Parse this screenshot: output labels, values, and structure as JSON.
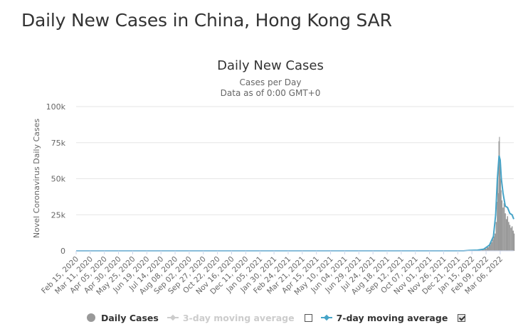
{
  "page": {
    "heading": "Daily New Cases in China, Hong Kong SAR"
  },
  "colors": {
    "bars": "#999999",
    "ma7": "#46a4c8",
    "ma3_off": "#cccccc",
    "grid": "#e6e6e6"
  },
  "chart_data": {
    "type": "bar",
    "title": "Daily New Cases",
    "subtitle": "Cases per Day",
    "subtitle2": "Data as of 0:00 GMT+0",
    "ylabel": "Novel Coronavirus Daily Cases",
    "xlabel": "",
    "ylim": [
      0,
      100000
    ],
    "yticks": [
      0,
      25000,
      50000,
      75000,
      100000
    ],
    "ytick_labels": [
      "0",
      "25k",
      "50k",
      "75k",
      "100k"
    ],
    "x_start": "2020-02-15",
    "x_end": "2022-03-30",
    "xtick_labels": [
      "Feb 15, 2020",
      "Mar 11, 2020",
      "Apr 05, 2020",
      "Apr 30, 2020",
      "May 25, 2020",
      "Jun 19, 2020",
      "Jul 14, 2020",
      "Aug 08, 2020",
      "Sep 02, 2020",
      "Sep 27, 2020",
      "Oct 22, 2020",
      "Nov 16, 2020",
      "Dec 11, 2020",
      "Jan 05, 2021",
      "Jan 30, 2021",
      "Feb 24, 2021",
      "Mar 21, 2021",
      "Apr 15, 2021",
      "May 10, 2021",
      "Jun 04, 2021",
      "Jun 29, 2021",
      "Jul 24, 2021",
      "Aug 18, 2021",
      "Sep 12, 2021",
      "Oct 07, 2021",
      "Nov 01, 2021",
      "Nov 26, 2021",
      "Dec 21, 2021",
      "Jan 15, 2022",
      "Feb 09, 2022",
      "Mar 06, 2022"
    ],
    "daily_cases": [
      {
        "date": "2022-01-15",
        "value": 200
      },
      {
        "date": "2022-01-25",
        "value": 400
      },
      {
        "date": "2022-02-01",
        "value": 800
      },
      {
        "date": "2022-02-06",
        "value": 1500
      },
      {
        "date": "2022-02-10",
        "value": 2500
      },
      {
        "date": "2022-02-14",
        "value": 4000
      },
      {
        "date": "2022-02-17",
        "value": 6000
      },
      {
        "date": "2022-02-20",
        "value": 8000
      },
      {
        "date": "2022-02-22",
        "value": 10000
      },
      {
        "date": "2022-02-24",
        "value": 12000
      },
      {
        "date": "2022-02-26",
        "value": 20000
      },
      {
        "date": "2022-02-28",
        "value": 34000
      },
      {
        "date": "2022-03-01",
        "value": 55000
      },
      {
        "date": "2022-03-02",
        "value": 40000
      },
      {
        "date": "2022-03-03",
        "value": 76000
      },
      {
        "date": "2022-03-04",
        "value": 79000
      },
      {
        "date": "2022-03-05",
        "value": 60000
      },
      {
        "date": "2022-03-06",
        "value": 50000
      },
      {
        "date": "2022-03-07",
        "value": 42000
      },
      {
        "date": "2022-03-08",
        "value": 35000
      },
      {
        "date": "2022-03-10",
        "value": 30000
      },
      {
        "date": "2022-03-12",
        "value": 33000
      },
      {
        "date": "2022-03-14",
        "value": 26000
      },
      {
        "date": "2022-03-16",
        "value": 22000
      },
      {
        "date": "2022-03-18",
        "value": 24000
      },
      {
        "date": "2022-03-20",
        "value": 20000
      },
      {
        "date": "2022-03-22",
        "value": 18000
      },
      {
        "date": "2022-03-24",
        "value": 16000
      },
      {
        "date": "2022-03-26",
        "value": 17000
      },
      {
        "date": "2022-03-28",
        "value": 14000
      },
      {
        "date": "2022-03-30",
        "value": 12000
      }
    ],
    "ma7": [
      {
        "date": "2020-02-15",
        "value": 0
      },
      {
        "date": "2021-12-31",
        "value": 0
      },
      {
        "date": "2022-01-10",
        "value": 300
      },
      {
        "date": "2022-01-25",
        "value": 500
      },
      {
        "date": "2022-02-05",
        "value": 1200
      },
      {
        "date": "2022-02-15",
        "value": 4000
      },
      {
        "date": "2022-02-22",
        "value": 10000
      },
      {
        "date": "2022-02-26",
        "value": 25000
      },
      {
        "date": "2022-03-01",
        "value": 50000
      },
      {
        "date": "2022-03-04",
        "value": 66000
      },
      {
        "date": "2022-03-06",
        "value": 63000
      },
      {
        "date": "2022-03-08",
        "value": 50000
      },
      {
        "date": "2022-03-11",
        "value": 40000
      },
      {
        "date": "2022-03-15",
        "value": 31000
      },
      {
        "date": "2022-03-19",
        "value": 30000
      },
      {
        "date": "2022-03-23",
        "value": 26000
      },
      {
        "date": "2022-03-27",
        "value": 25000
      },
      {
        "date": "2022-03-30",
        "value": 22000
      }
    ],
    "grid": true,
    "legend_placement": "bottom-center"
  },
  "legend": {
    "daily_label": "Daily Cases",
    "ma3_label": "3-day moving average",
    "ma7_label": "7-day moving average",
    "ma3_checked": false,
    "ma7_checked": true
  }
}
